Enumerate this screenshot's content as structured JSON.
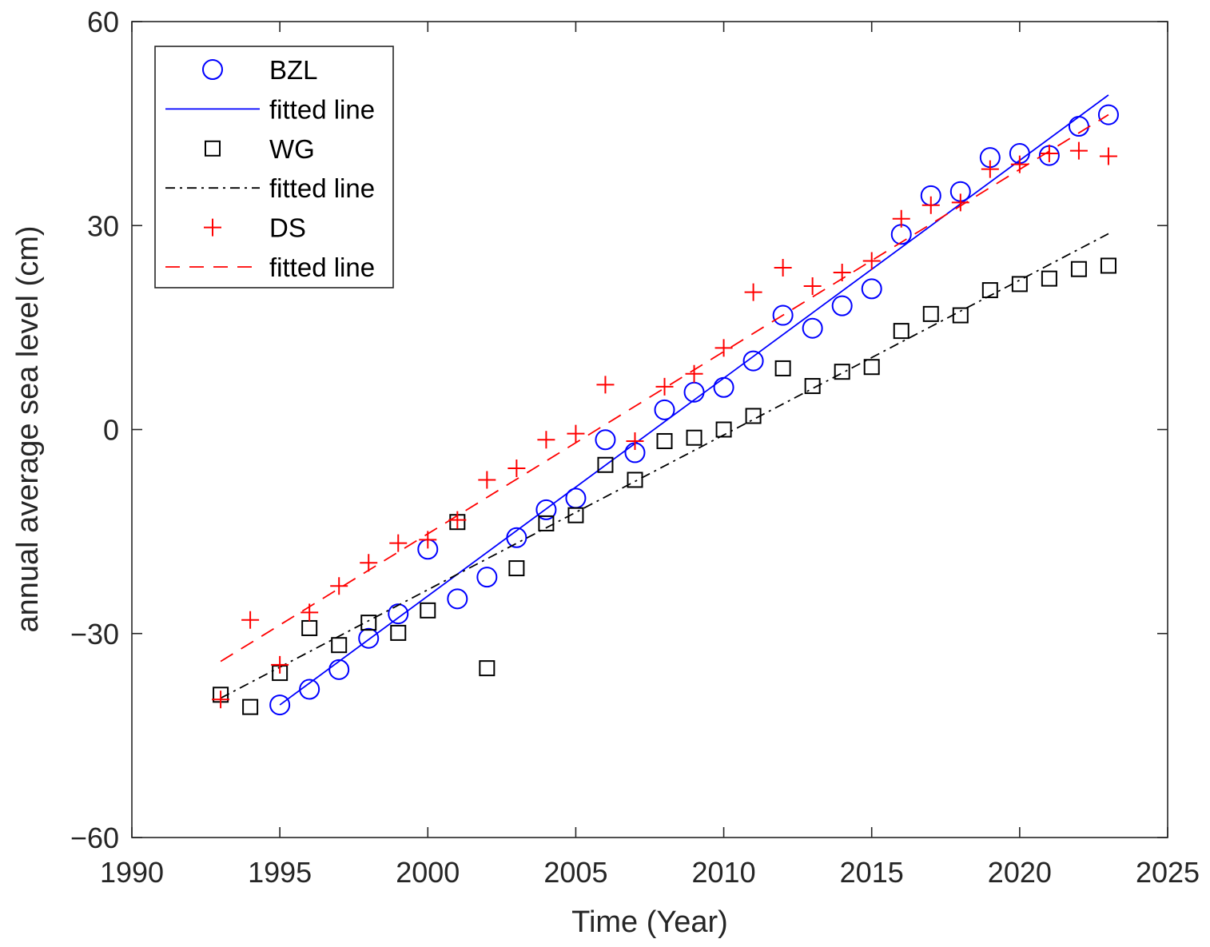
{
  "chart_data": {
    "type": "scatter",
    "title": "",
    "xlabel": "Time (Year)",
    "ylabel": "annual average sea level (cm)",
    "xlim": [
      1990,
      2025
    ],
    "ylim": [
      -60,
      60
    ],
    "xticks": [
      1990,
      1995,
      2000,
      2005,
      2010,
      2015,
      2020,
      2025
    ],
    "yticks": [
      -60,
      -30,
      0,
      30,
      60
    ],
    "xtick_labels": [
      "1990",
      "1995",
      "2000",
      "2005",
      "2010",
      "2015",
      "2020",
      "2025"
    ],
    "ytick_labels": [
      "−60",
      "−30",
      "0",
      "30",
      "60"
    ],
    "grid": false,
    "legend_position": "top-left",
    "series": [
      {
        "name": "BZL",
        "marker": "circle",
        "color": "#0000ff",
        "x": [
          1995,
          1996,
          1997,
          1998,
          1999,
          2000,
          2001,
          2002,
          2003,
          2004,
          2005,
          2006,
          2007,
          2008,
          2009,
          2010,
          2011,
          2012,
          2013,
          2014,
          2015,
          2016,
          2017,
          2018,
          2019,
          2020,
          2021,
          2022,
          2023
        ],
        "y": [
          -40.5,
          -38.2,
          -35.3,
          -30.7,
          -27.1,
          -17.6,
          -24.9,
          -21.7,
          -15.9,
          -11.8,
          -10.1,
          -1.5,
          -3.4,
          2.9,
          5.5,
          6.2,
          10.1,
          16.8,
          14.9,
          18.2,
          20.7,
          28.7,
          34.4,
          35.0,
          40.0,
          40.6,
          40.3,
          44.6,
          46.3
        ]
      },
      {
        "name": "fitted line",
        "fit_for": "BZL",
        "style": "solid",
        "color": "#0000ff",
        "x": [
          1995,
          2023
        ],
        "y": [
          -40.5,
          49.2
        ]
      },
      {
        "name": "WG",
        "marker": "square",
        "color": "#000000",
        "x": [
          1993,
          1994,
          1995,
          1996,
          1997,
          1998,
          1999,
          2000,
          2001,
          2002,
          2003,
          2004,
          2005,
          2006,
          2007,
          2008,
          2009,
          2010,
          2011,
          2012,
          2013,
          2014,
          2015,
          2016,
          2017,
          2018,
          2019,
          2020,
          2021,
          2022,
          2023
        ],
        "y": [
          -39.0,
          -40.8,
          -35.8,
          -29.2,
          -31.7,
          -28.4,
          -29.9,
          -26.6,
          -13.6,
          -35.1,
          -20.4,
          -13.8,
          -12.6,
          -5.2,
          -7.4,
          -1.7,
          -1.2,
          0.0,
          2.0,
          9.0,
          6.4,
          8.5,
          9.2,
          14.5,
          17.0,
          16.8,
          20.5,
          21.4,
          22.2,
          23.6,
          24.1
        ]
      },
      {
        "name": "fitted line",
        "fit_for": "WG",
        "style": "dash-dot",
        "color": "#000000",
        "x": [
          1993,
          2023
        ],
        "y": [
          -39.5,
          28.8
        ]
      },
      {
        "name": "DS",
        "marker": "plus",
        "color": "#ff0000",
        "x": [
          1993,
          1994,
          1995,
          1996,
          1997,
          1998,
          1999,
          2000,
          2001,
          2002,
          2003,
          2004,
          2005,
          2006,
          2007,
          2008,
          2009,
          2010,
          2011,
          2012,
          2013,
          2014,
          2015,
          2016,
          2017,
          2018,
          2019,
          2020,
          2021,
          2022,
          2023
        ],
        "y": [
          -39.7,
          -28.0,
          -34.6,
          -26.9,
          -23.0,
          -19.6,
          -16.7,
          -16.2,
          -13.3,
          -7.4,
          -5.7,
          -1.5,
          -0.6,
          6.6,
          -1.7,
          6.3,
          8.2,
          12.0,
          20.2,
          23.8,
          21.1,
          23.1,
          24.8,
          31.0,
          33.0,
          33.4,
          38.3,
          39.0,
          40.6,
          41.0,
          40.2
        ]
      },
      {
        "name": "fitted line",
        "fit_for": "DS",
        "style": "dashed",
        "color": "#ff0000",
        "x": [
          1993,
          2023
        ],
        "y": [
          -34.1,
          46.3
        ]
      }
    ]
  }
}
